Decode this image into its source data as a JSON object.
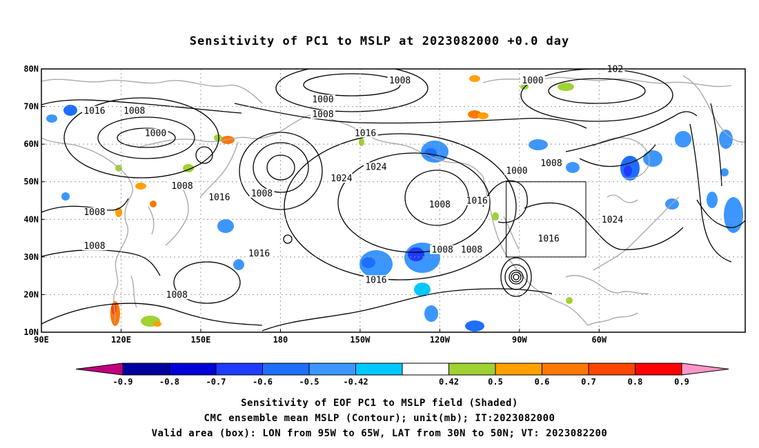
{
  "title": "Sensitivity of PC1 to MSLP at 2023082000 +0.0 day",
  "axes": {
    "lat_ticks": [
      "80N",
      "70N",
      "60N",
      "50N",
      "40N",
      "30N",
      "20N",
      "10N"
    ],
    "lon_ticks": [
      "90E",
      "120E",
      "150E",
      "180",
      "150W",
      "120W",
      "90W",
      "60W"
    ]
  },
  "contour_labels": [
    {
      "text": "1016",
      "lon": 110,
      "lat": 68.5
    },
    {
      "text": "1008",
      "lon": 125,
      "lat": 68.5
    },
    {
      "text": "1000",
      "lon": 133,
      "lat": 62.5
    },
    {
      "text": "1000",
      "lon": -164,
      "lat": 71.5
    },
    {
      "text": "1008",
      "lon": -164,
      "lat": 67.5
    },
    {
      "text": "1008",
      "lon": -135,
      "lat": 76.5
    },
    {
      "text": "1016",
      "lon": -148,
      "lat": 62.5
    },
    {
      "text": "1000",
      "lon": -85,
      "lat": 76.5
    },
    {
      "text": "1008",
      "lon": 143,
      "lat": 48.5
    },
    {
      "text": "1008",
      "lon": 110,
      "lat": 41.5
    },
    {
      "text": "1016",
      "lon": 157,
      "lat": 45.5
    },
    {
      "text": "1008",
      "lon": 173,
      "lat": 46.5
    },
    {
      "text": "1024",
      "lon": -157,
      "lat": 50.5
    },
    {
      "text": "1024",
      "lon": -144,
      "lat": 53.5
    },
    {
      "text": "1008",
      "lon": -120,
      "lat": 43.5
    },
    {
      "text": "1016",
      "lon": -106,
      "lat": 44.5
    },
    {
      "text": "1000",
      "lon": -91,
      "lat": 52.5
    },
    {
      "text": "1008",
      "lon": -78,
      "lat": 54.5
    },
    {
      "text": "1008",
      "lon": 110,
      "lat": 32.5
    },
    {
      "text": "1016",
      "lon": 172,
      "lat": 30.5
    },
    {
      "text": "1016",
      "lon": -144,
      "lat": 23.5
    },
    {
      "text": "1008",
      "lon": -119,
      "lat": 31.5
    },
    {
      "text": "1008",
      "lon": -108,
      "lat": 31.5
    },
    {
      "text": "1016",
      "lon": -79,
      "lat": 34.5
    },
    {
      "text": "1008",
      "lon": 141,
      "lat": 19.5
    },
    {
      "text": "1024",
      "lon": -55,
      "lat": 39.5
    },
    {
      "text": "102",
      "lon": -54,
      "lat": 79.5
    }
  ],
  "colorbar": {
    "tick_labels": [
      "-0.9",
      "-0.8",
      "-0.7",
      "-0.6",
      "-0.5",
      "-0.42",
      "0.42",
      "0.5",
      "0.6",
      "0.7",
      "0.8",
      "0.9"
    ],
    "colors": [
      "#c0007f",
      "#0000a0",
      "#0000d8",
      "#1e3cff",
      "#1e6eff",
      "#3c96ff",
      "#00c8ff",
      "#ffffff",
      "#a0d232",
      "#ffa000",
      "#ff7800",
      "#ff4600",
      "#ff0000",
      "#ff96c8"
    ]
  },
  "footer": {
    "line1": "Sensitivity of EOF PC1 to MSLP field (Shaded)",
    "line2": "CMC ensemble mean MSLP (Contour); unit(mb); IT:2023082000",
    "line3": "Valid area (box): LON from 95W to 65W, LAT from 30N to 50N; VT: 2023082200"
  }
}
